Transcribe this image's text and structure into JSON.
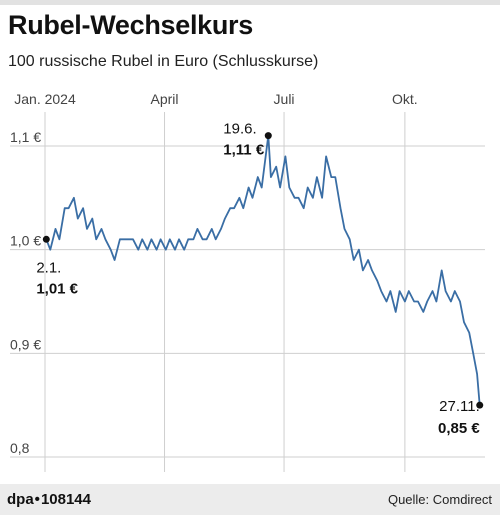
{
  "header": {
    "title": "Rubel-Wechselkurs",
    "subtitle": "100 russische Rubel in Euro (Schlusskurse)"
  },
  "footer": {
    "brand_name": "dpa",
    "brand_sep": "•",
    "brand_number": "108144",
    "source": "Quelle: Comdirect"
  },
  "colors": {
    "line": "#3a6ea5",
    "grid": "#cfcfcf",
    "text": "#1a1a1a",
    "footer_bg": "#ececec"
  },
  "chart_data": {
    "type": "line",
    "grid": true,
    "ylim": [
      0.8,
      1.12
    ],
    "xlim": [
      "2024-01-01",
      "2024-12-01"
    ],
    "x_ticks": [
      {
        "date": "2024-01-01",
        "label": "Jan. 2024"
      },
      {
        "date": "2024-04-01",
        "label": "April"
      },
      {
        "date": "2024-07-01",
        "label": "Juli"
      },
      {
        "date": "2024-10-01",
        "label": "Okt."
      }
    ],
    "y_ticks": [
      {
        "value": 1.1,
        "label": "1,1 €"
      },
      {
        "value": 1.0,
        "label": "1,0 €"
      },
      {
        "value": 0.9,
        "label": "0,9 €"
      },
      {
        "value": 0.8,
        "label": "0,8"
      }
    ],
    "series": [
      {
        "points": [
          [
            "2024-01-02",
            1.01
          ],
          [
            "2024-01-05",
            1.0
          ],
          [
            "2024-01-09",
            1.02
          ],
          [
            "2024-01-12",
            1.01
          ],
          [
            "2024-01-16",
            1.04
          ],
          [
            "2024-01-19",
            1.04
          ],
          [
            "2024-01-23",
            1.05
          ],
          [
            "2024-01-26",
            1.03
          ],
          [
            "2024-01-30",
            1.04
          ],
          [
            "2024-02-02",
            1.02
          ],
          [
            "2024-02-06",
            1.03
          ],
          [
            "2024-02-09",
            1.01
          ],
          [
            "2024-02-13",
            1.02
          ],
          [
            "2024-02-16",
            1.01
          ],
          [
            "2024-02-20",
            1.0
          ],
          [
            "2024-02-23",
            0.99
          ],
          [
            "2024-02-27",
            1.01
          ],
          [
            "2024-03-01",
            1.01
          ],
          [
            "2024-03-05",
            1.01
          ],
          [
            "2024-03-08",
            1.01
          ],
          [
            "2024-03-12",
            1.0
          ],
          [
            "2024-03-15",
            1.01
          ],
          [
            "2024-03-19",
            1.0
          ],
          [
            "2024-03-22",
            1.01
          ],
          [
            "2024-03-26",
            1.0
          ],
          [
            "2024-03-29",
            1.01
          ],
          [
            "2024-04-02",
            1.0
          ],
          [
            "2024-04-05",
            1.01
          ],
          [
            "2024-04-09",
            1.0
          ],
          [
            "2024-04-12",
            1.01
          ],
          [
            "2024-04-16",
            1.0
          ],
          [
            "2024-04-19",
            1.01
          ],
          [
            "2024-04-23",
            1.01
          ],
          [
            "2024-04-26",
            1.02
          ],
          [
            "2024-04-30",
            1.01
          ],
          [
            "2024-05-03",
            1.01
          ],
          [
            "2024-05-07",
            1.02
          ],
          [
            "2024-05-10",
            1.01
          ],
          [
            "2024-05-14",
            1.02
          ],
          [
            "2024-05-17",
            1.03
          ],
          [
            "2024-05-21",
            1.04
          ],
          [
            "2024-05-24",
            1.04
          ],
          [
            "2024-05-28",
            1.05
          ],
          [
            "2024-05-31",
            1.04
          ],
          [
            "2024-06-04",
            1.06
          ],
          [
            "2024-06-07",
            1.05
          ],
          [
            "2024-06-11",
            1.07
          ],
          [
            "2024-06-14",
            1.06
          ],
          [
            "2024-06-19",
            1.11
          ],
          [
            "2024-06-21",
            1.07
          ],
          [
            "2024-06-25",
            1.08
          ],
          [
            "2024-06-28",
            1.06
          ],
          [
            "2024-07-02",
            1.09
          ],
          [
            "2024-07-05",
            1.06
          ],
          [
            "2024-07-09",
            1.05
          ],
          [
            "2024-07-12",
            1.05
          ],
          [
            "2024-07-16",
            1.04
          ],
          [
            "2024-07-19",
            1.06
          ],
          [
            "2024-07-23",
            1.05
          ],
          [
            "2024-07-26",
            1.07
          ],
          [
            "2024-07-30",
            1.05
          ],
          [
            "2024-08-02",
            1.09
          ],
          [
            "2024-08-06",
            1.07
          ],
          [
            "2024-08-09",
            1.07
          ],
          [
            "2024-08-13",
            1.04
          ],
          [
            "2024-08-16",
            1.02
          ],
          [
            "2024-08-20",
            1.01
          ],
          [
            "2024-08-23",
            0.99
          ],
          [
            "2024-08-27",
            1.0
          ],
          [
            "2024-08-30",
            0.98
          ],
          [
            "2024-09-03",
            0.99
          ],
          [
            "2024-09-06",
            0.98
          ],
          [
            "2024-09-10",
            0.97
          ],
          [
            "2024-09-13",
            0.96
          ],
          [
            "2024-09-17",
            0.95
          ],
          [
            "2024-09-20",
            0.96
          ],
          [
            "2024-09-24",
            0.94
          ],
          [
            "2024-09-27",
            0.96
          ],
          [
            "2024-10-01",
            0.95
          ],
          [
            "2024-10-04",
            0.96
          ],
          [
            "2024-10-08",
            0.95
          ],
          [
            "2024-10-11",
            0.95
          ],
          [
            "2024-10-15",
            0.94
          ],
          [
            "2024-10-18",
            0.95
          ],
          [
            "2024-10-22",
            0.96
          ],
          [
            "2024-10-25",
            0.95
          ],
          [
            "2024-10-29",
            0.98
          ],
          [
            "2024-11-01",
            0.96
          ],
          [
            "2024-11-05",
            0.95
          ],
          [
            "2024-11-08",
            0.96
          ],
          [
            "2024-11-12",
            0.95
          ],
          [
            "2024-11-15",
            0.93
          ],
          [
            "2024-11-19",
            0.92
          ],
          [
            "2024-11-22",
            0.9
          ],
          [
            "2024-11-25",
            0.88
          ],
          [
            "2024-11-27",
            0.85
          ]
        ]
      }
    ],
    "annotations": [
      {
        "date": "2024-01-02",
        "value": 1.01,
        "date_label": "2.1.",
        "value_label": "1,01 €"
      },
      {
        "date": "2024-06-19",
        "value": 1.11,
        "date_label": "19.6.",
        "value_label": "1,11 €"
      },
      {
        "date": "2024-11-27",
        "value": 0.85,
        "date_label": "27.11.",
        "value_label": "0,85 €"
      }
    ]
  }
}
